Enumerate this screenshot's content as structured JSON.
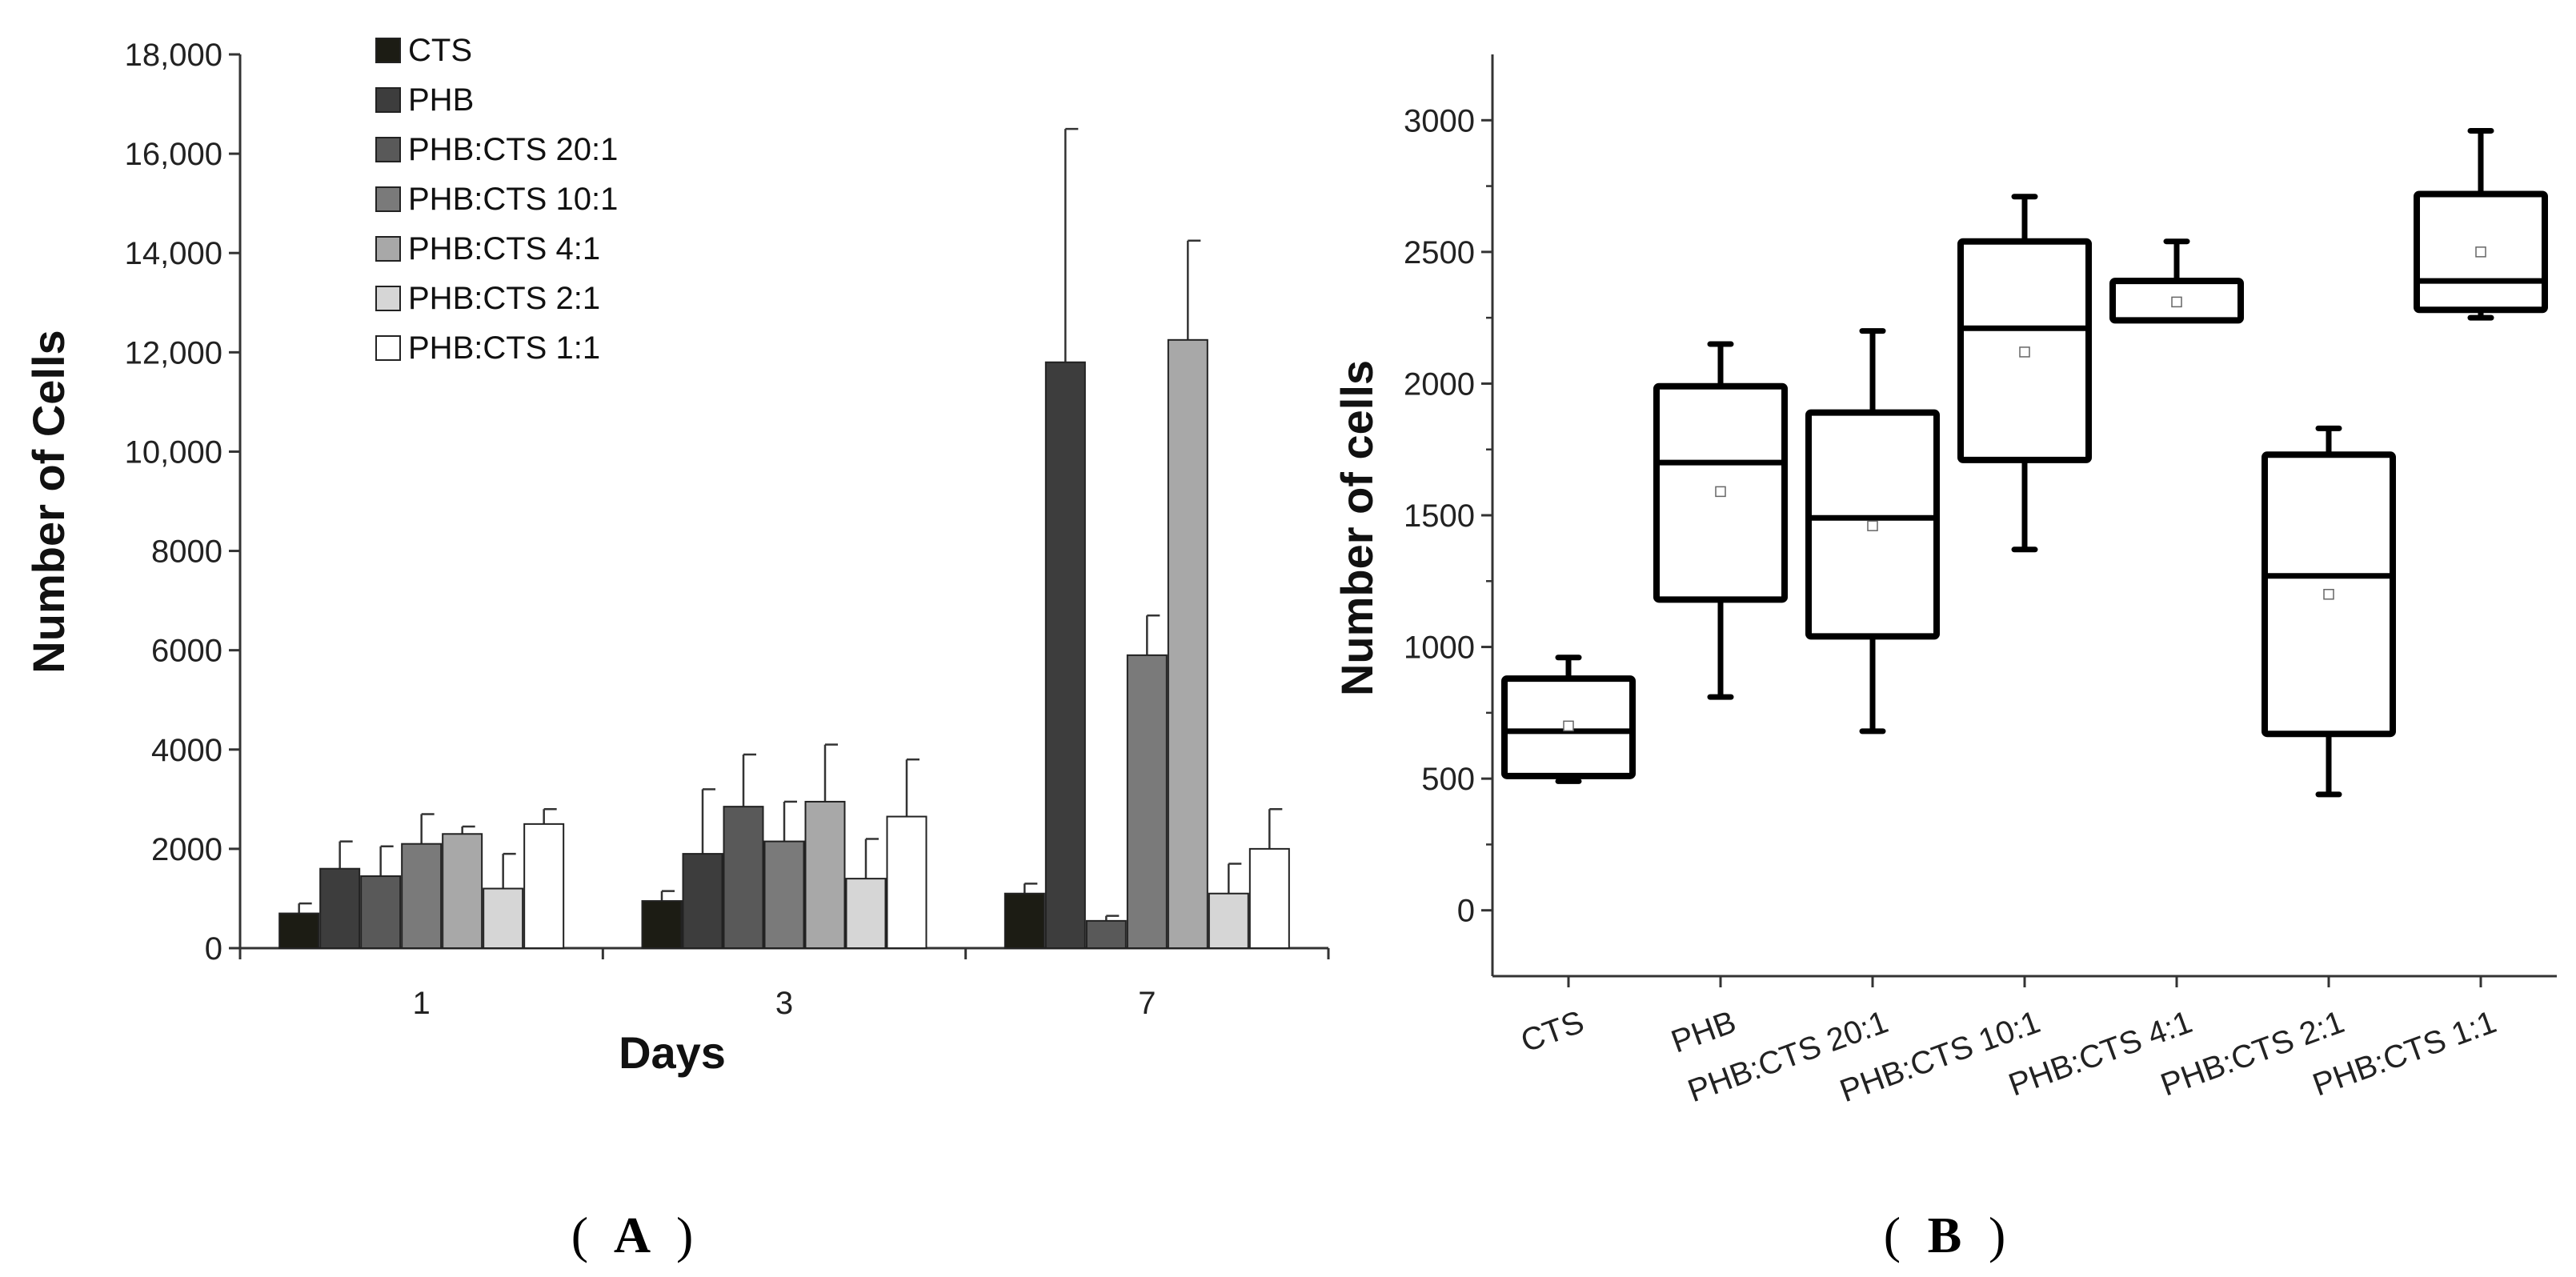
{
  "chart_data": [
    {
      "type": "bar",
      "panel_label": "A",
      "xlabel": "Days",
      "ylabel": "Number of Cells",
      "categories": [
        "1",
        "3",
        "7"
      ],
      "ylim": [
        0,
        18000
      ],
      "yticks": [
        0,
        2000,
        4000,
        6000,
        8000,
        10000,
        12000,
        14000,
        16000,
        18000
      ],
      "ytick_labels": [
        "0",
        "2000",
        "4000",
        "6000",
        "8000",
        "10,000",
        "12,000",
        "14,000",
        "16,000",
        "18,000"
      ],
      "legend_position": "top-left",
      "series": [
        {
          "name": "CTS",
          "color": "#1c1c14",
          "values": [
            700,
            950,
            1100
          ],
          "errors": [
            200,
            200,
            200
          ]
        },
        {
          "name": "PHB",
          "color": "#3d3d3d",
          "values": [
            1600,
            1900,
            11800
          ],
          "errors": [
            550,
            1300,
            4700
          ]
        },
        {
          "name": "PHB:CTS 20:1",
          "color": "#595959",
          "values": [
            1450,
            2850,
            550
          ],
          "errors": [
            600,
            1050,
            100
          ]
        },
        {
          "name": "PHB:CTS 10:1",
          "color": "#7a7a7a",
          "values": [
            2100,
            2150,
            5900
          ],
          "errors": [
            600,
            800,
            800
          ]
        },
        {
          "name": "PHB:CTS 4:1",
          "color": "#a8a8a8",
          "values": [
            2300,
            2950,
            12250
          ],
          "errors": [
            150,
            1150,
            2000
          ]
        },
        {
          "name": "PHB:CTS 2:1",
          "color": "#d6d6d6",
          "values": [
            1200,
            1400,
            1100
          ],
          "errors": [
            700,
            800,
            600
          ]
        },
        {
          "name": "PHB:CTS 1:1",
          "color": "#ffffff",
          "values": [
            2500,
            2650,
            2000
          ],
          "errors": [
            300,
            1150,
            800
          ]
        }
      ]
    },
    {
      "type": "box",
      "panel_label": "B",
      "xlabel": "",
      "ylabel": "Number of cells",
      "categories": [
        "CTS",
        "PHB",
        "PHB:CTS 20:1",
        "PHB:CTS 10:1",
        "PHB:CTS 4:1",
        "PHB:CTS 2:1",
        "PHB:CTS 1:1"
      ],
      "ylim": [
        -250,
        3250
      ],
      "yticks": [
        0,
        500,
        1000,
        1500,
        2000,
        2500,
        3000
      ],
      "ytick_labels": [
        "0",
        "500",
        "1000",
        "1500",
        "2000",
        "2500",
        "3000"
      ],
      "boxes": [
        {
          "min": 490,
          "q1": 510,
          "median": 680,
          "q3": 880,
          "max": 960,
          "mean": 700
        },
        {
          "min": 810,
          "q1": 1180,
          "median": 1700,
          "q3": 1990,
          "max": 2150,
          "mean": 1590
        },
        {
          "min": 680,
          "q1": 1040,
          "median": 1490,
          "q3": 1890,
          "max": 2200,
          "mean": 1460
        },
        {
          "min": 1370,
          "q1": 1710,
          "median": 2210,
          "q3": 2540,
          "max": 2710,
          "mean": 2120
        },
        {
          "min": 2240,
          "q1": 2240,
          "median": 2240,
          "q3": 2390,
          "max": 2540,
          "mean": 2310
        },
        {
          "min": 440,
          "q1": 670,
          "median": 1270,
          "q3": 1730,
          "max": 1830,
          "mean": 1200
        },
        {
          "min": 2250,
          "q1": 2280,
          "median": 2390,
          "q3": 2720,
          "max": 2960,
          "mean": 2500
        }
      ]
    }
  ]
}
